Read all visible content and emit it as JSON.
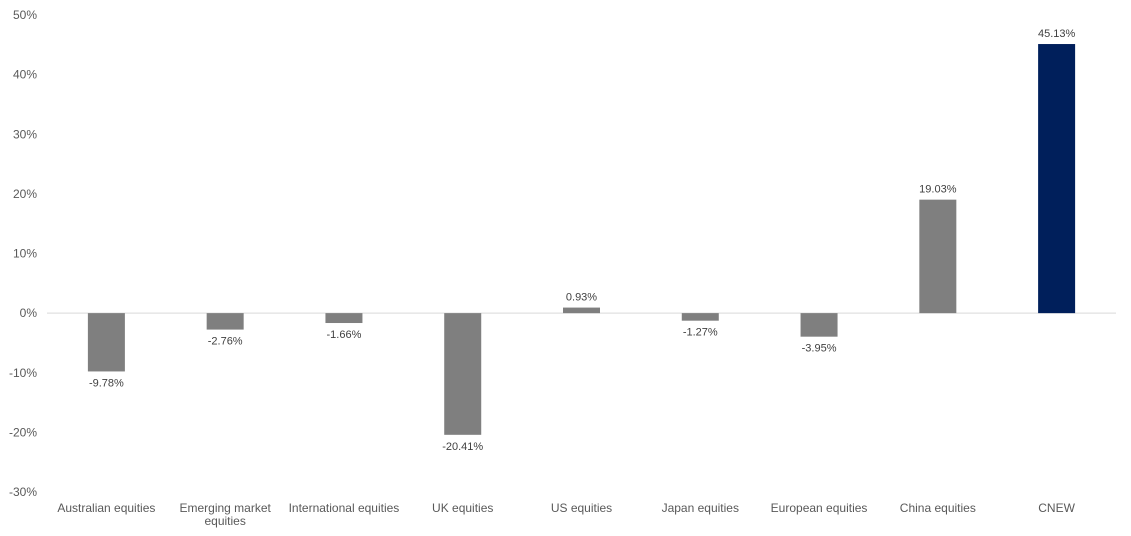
{
  "chart_data": {
    "type": "bar",
    "categories": [
      "Australian equities",
      "Emerging market equities",
      "International equities",
      "UK equities",
      "US equities",
      "Japan equities",
      "European equities",
      "China equities",
      "CNEW"
    ],
    "values": [
      -9.78,
      -2.76,
      -1.66,
      -20.41,
      0.93,
      -1.27,
      -3.95,
      19.03,
      45.13
    ],
    "value_labels": [
      "-9.78%",
      "-2.76%",
      "-1.66%",
      "-20.41%",
      "0.93%",
      "-1.27%",
      "-3.95%",
      "19.03%",
      "45.13%"
    ],
    "ylim": [
      -30,
      50
    ],
    "yticks": [
      50,
      40,
      30,
      20,
      10,
      0,
      -10,
      -20,
      -30
    ],
    "ytick_labels": [
      "50%",
      "40%",
      "30%",
      "20%",
      "10%",
      "0%",
      "-10%",
      "-20%",
      "-30%"
    ],
    "grid": false,
    "title": "",
    "xlabel": "",
    "ylabel": "",
    "bar_colors": {
      "default": "#7f7f7f",
      "highlight": "#001f5b"
    },
    "highlight_category": "CNEW",
    "axis_line_color": "#d9d9d9"
  }
}
